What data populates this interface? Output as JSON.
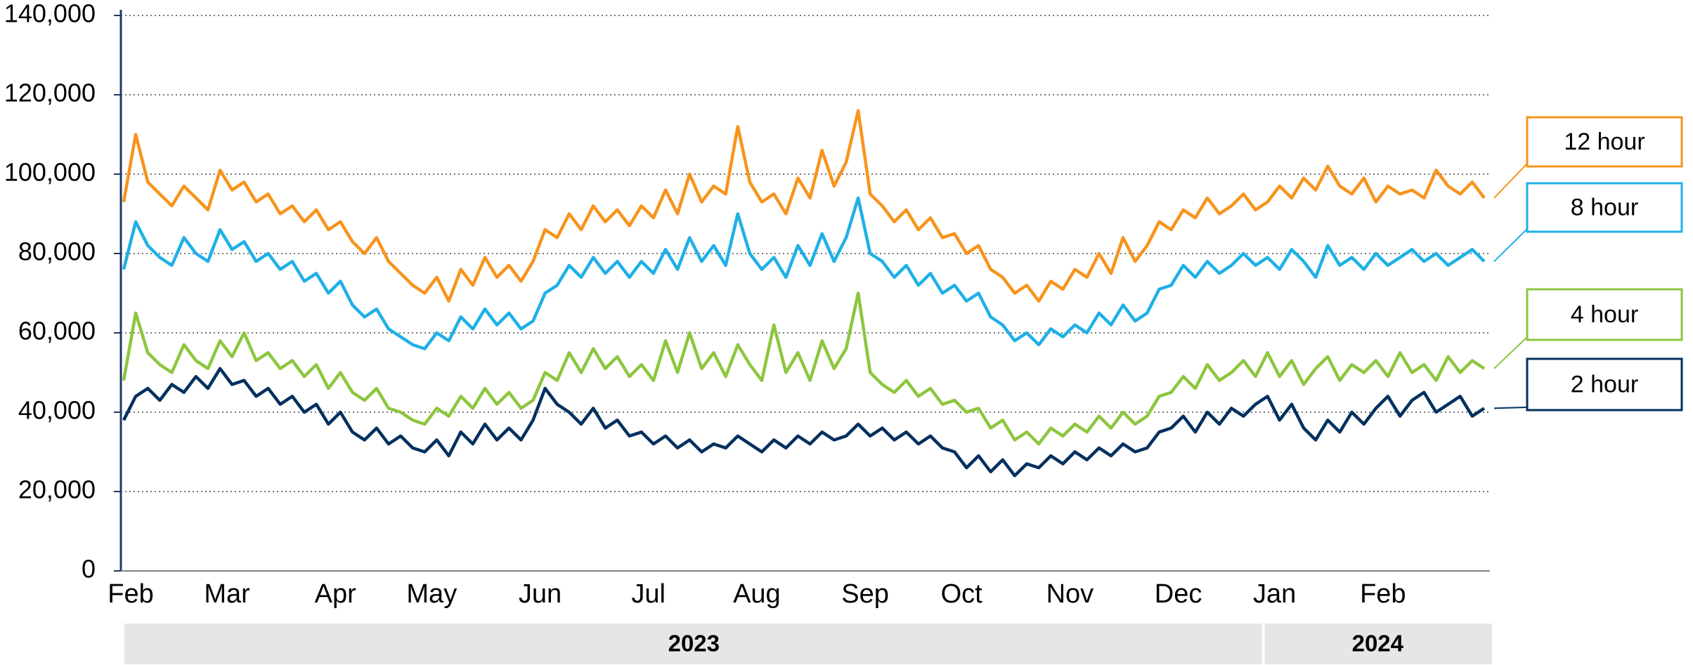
{
  "chart_data": {
    "type": "line",
    "categories": [
      "Feb",
      null,
      null,
      null,
      null,
      null,
      null,
      null,
      "Mar",
      null,
      null,
      null,
      null,
      null,
      null,
      null,
      null,
      "Apr",
      null,
      null,
      null,
      null,
      null,
      null,
      null,
      "May",
      null,
      null,
      null,
      null,
      null,
      null,
      null,
      null,
      "Jun",
      null,
      null,
      null,
      null,
      null,
      null,
      null,
      null,
      "Jul",
      null,
      null,
      null,
      null,
      null,
      null,
      null,
      null,
      "Aug",
      null,
      null,
      null,
      null,
      null,
      null,
      null,
      null,
      "Sep",
      null,
      null,
      null,
      null,
      null,
      null,
      null,
      "Oct",
      null,
      null,
      null,
      null,
      null,
      null,
      null,
      null,
      "Nov",
      null,
      null,
      null,
      null,
      null,
      null,
      null,
      null,
      "Dec",
      null,
      null,
      null,
      null,
      null,
      null,
      null,
      "Jan",
      null,
      null,
      null,
      null,
      null,
      null,
      null,
      null,
      "Feb",
      null,
      null,
      null,
      null,
      null,
      null,
      null,
      null,
      null
    ],
    "x_groups": [
      "2023",
      "2024"
    ],
    "ylim": [
      0,
      140000
    ],
    "yticks": [
      0,
      {
        "value": 20000,
        "label": "20,000"
      },
      {
        "value": 40000,
        "label": "40,000"
      },
      {
        "value": 60000,
        "label": "60,000"
      },
      {
        "value": 80000,
        "label": "80,000"
      },
      {
        "value": 100000,
        "label": "100,000"
      },
      {
        "value": 120000,
        "label": "120,000"
      },
      {
        "value": 140000,
        "label": "140,000"
      }
    ],
    "grid": true,
    "series": [
      {
        "name": "12 hour",
        "color": "#f7941d",
        "values": [
          93000,
          110000,
          98000,
          95000,
          92000,
          97000,
          94000,
          91000,
          101000,
          96000,
          98000,
          93000,
          95000,
          90000,
          92000,
          88000,
          91000,
          86000,
          88000,
          83000,
          80000,
          84000,
          78000,
          75000,
          72000,
          70000,
          74000,
          68000,
          76000,
          72000,
          79000,
          74000,
          77000,
          73000,
          78000,
          86000,
          84000,
          90000,
          86000,
          92000,
          88000,
          91000,
          87000,
          92000,
          89000,
          96000,
          90000,
          100000,
          93000,
          97000,
          95000,
          112000,
          98000,
          93000,
          95000,
          90000,
          99000,
          94000,
          106000,
          97000,
          103000,
          116000,
          95000,
          92000,
          88000,
          91000,
          86000,
          89000,
          84000,
          85000,
          80000,
          82000,
          76000,
          74000,
          70000,
          72000,
          68000,
          73000,
          71000,
          76000,
          74000,
          80000,
          75000,
          84000,
          78000,
          82000,
          88000,
          86000,
          91000,
          89000,
          94000,
          90000,
          92000,
          95000,
          91000,
          93000,
          97000,
          94000,
          99000,
          96000,
          102000,
          97000,
          95000,
          99000,
          93000,
          97000,
          95000,
          96000,
          94000,
          101000,
          97000,
          95000,
          98000,
          94000
        ]
      },
      {
        "name": "8 hour",
        "color": "#1fb0e6",
        "values": [
          76000,
          88000,
          82000,
          79000,
          77000,
          84000,
          80000,
          78000,
          86000,
          81000,
          83000,
          78000,
          80000,
          76000,
          78000,
          73000,
          75000,
          70000,
          73000,
          67000,
          64000,
          66000,
          61000,
          59000,
          57000,
          56000,
          60000,
          58000,
          64000,
          61000,
          66000,
          62000,
          65000,
          61000,
          63000,
          70000,
          72000,
          77000,
          74000,
          79000,
          75000,
          78000,
          74000,
          78000,
          75000,
          81000,
          76000,
          84000,
          78000,
          82000,
          77000,
          90000,
          80000,
          76000,
          79000,
          74000,
          82000,
          77000,
          85000,
          78000,
          84000,
          94000,
          80000,
          78000,
          74000,
          77000,
          72000,
          75000,
          70000,
          72000,
          68000,
          70000,
          64000,
          62000,
          58000,
          60000,
          57000,
          61000,
          59000,
          62000,
          60000,
          65000,
          62000,
          67000,
          63000,
          65000,
          71000,
          72000,
          77000,
          74000,
          78000,
          75000,
          77000,
          80000,
          77000,
          79000,
          76000,
          81000,
          78000,
          74000,
          82000,
          77000,
          79000,
          76000,
          80000,
          77000,
          79000,
          81000,
          78000,
          80000,
          77000,
          79000,
          81000,
          78000
        ]
      },
      {
        "name": "4 hour",
        "color": "#8dc63f",
        "values": [
          48000,
          65000,
          55000,
          52000,
          50000,
          57000,
          53000,
          51000,
          58000,
          54000,
          60000,
          53000,
          55000,
          51000,
          53000,
          49000,
          52000,
          46000,
          50000,
          45000,
          43000,
          46000,
          41000,
          40000,
          38000,
          37000,
          41000,
          39000,
          44000,
          41000,
          46000,
          42000,
          45000,
          41000,
          43000,
          50000,
          48000,
          55000,
          50000,
          56000,
          51000,
          54000,
          49000,
          52000,
          48000,
          58000,
          50000,
          60000,
          51000,
          55000,
          49000,
          57000,
          52000,
          48000,
          62000,
          50000,
          55000,
          48000,
          58000,
          51000,
          56000,
          70000,
          50000,
          47000,
          45000,
          48000,
          44000,
          46000,
          42000,
          43000,
          40000,
          41000,
          36000,
          38000,
          33000,
          35000,
          32000,
          36000,
          34000,
          37000,
          35000,
          39000,
          36000,
          40000,
          37000,
          39000,
          44000,
          45000,
          49000,
          46000,
          52000,
          48000,
          50000,
          53000,
          49000,
          55000,
          49000,
          53000,
          47000,
          51000,
          54000,
          48000,
          52000,
          50000,
          53000,
          49000,
          55000,
          50000,
          52000,
          48000,
          54000,
          50000,
          53000,
          51000
        ]
      },
      {
        "name": "2 hour",
        "color": "#00305e",
        "values": [
          38000,
          44000,
          46000,
          43000,
          47000,
          45000,
          49000,
          46000,
          51000,
          47000,
          48000,
          44000,
          46000,
          42000,
          44000,
          40000,
          42000,
          37000,
          40000,
          35000,
          33000,
          36000,
          32000,
          34000,
          31000,
          30000,
          33000,
          29000,
          35000,
          32000,
          37000,
          33000,
          36000,
          33000,
          38000,
          46000,
          42000,
          40000,
          37000,
          41000,
          36000,
          38000,
          34000,
          35000,
          32000,
          34000,
          31000,
          33000,
          30000,
          32000,
          31000,
          34000,
          32000,
          30000,
          33000,
          31000,
          34000,
          32000,
          35000,
          33000,
          34000,
          37000,
          34000,
          36000,
          33000,
          35000,
          32000,
          34000,
          31000,
          30000,
          26000,
          29000,
          25000,
          28000,
          24000,
          27000,
          26000,
          29000,
          27000,
          30000,
          28000,
          31000,
          29000,
          32000,
          30000,
          31000,
          35000,
          36000,
          39000,
          35000,
          40000,
          37000,
          41000,
          39000,
          42000,
          44000,
          38000,
          42000,
          36000,
          33000,
          38000,
          35000,
          40000,
          37000,
          41000,
          44000,
          39000,
          43000,
          45000,
          40000,
          42000,
          44000,
          39000,
          41000
        ]
      }
    ]
  }
}
